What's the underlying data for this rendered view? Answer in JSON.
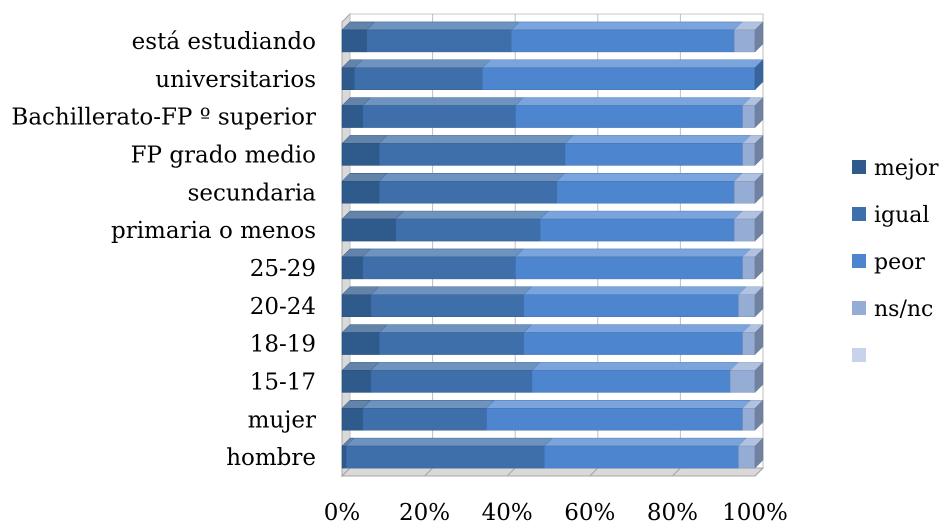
{
  "chart_data": {
    "type": "bar",
    "orientation": "horizontal",
    "stacked": "100%",
    "three_d": true,
    "grid": true,
    "legend_position": "right",
    "categories": [
      "está estudiando",
      "universitarios",
      "Bachillerato-FP º superior",
      "FP grado medio",
      "secundaria",
      "primaria o menos",
      "25-29",
      "20-24",
      "18-19",
      "15-17",
      "mujer",
      "hombre"
    ],
    "series": [
      {
        "name": "mejor",
        "color": "#2f5a8c",
        "values": [
          6,
          3,
          5,
          9,
          9,
          13,
          5,
          7,
          9,
          7,
          5,
          1
        ]
      },
      {
        "name": "igual",
        "color": "#3e6faa",
        "values": [
          35,
          31,
          37,
          45,
          43,
          35,
          37,
          37,
          35,
          39,
          30,
          48
        ]
      },
      {
        "name": "peor",
        "color": "#4d86cf",
        "values": [
          54,
          66,
          55,
          43,
          43,
          47,
          55,
          52,
          53,
          48,
          62,
          47
        ]
      },
      {
        "name": "ns/nc",
        "color": "#95add5",
        "values": [
          5,
          0,
          3,
          3,
          5,
          5,
          3,
          4,
          3,
          6,
          3,
          4
        ]
      },
      {
        "name": "",
        "color": "#c7d3ea",
        "values": [
          0,
          0,
          0,
          0,
          0,
          0,
          0,
          0,
          0,
          0,
          0,
          0
        ]
      }
    ],
    "xlim": [
      0,
      100
    ],
    "xticks": [
      "0%",
      "20%",
      "40%",
      "60%",
      "80%",
      "100%"
    ]
  }
}
